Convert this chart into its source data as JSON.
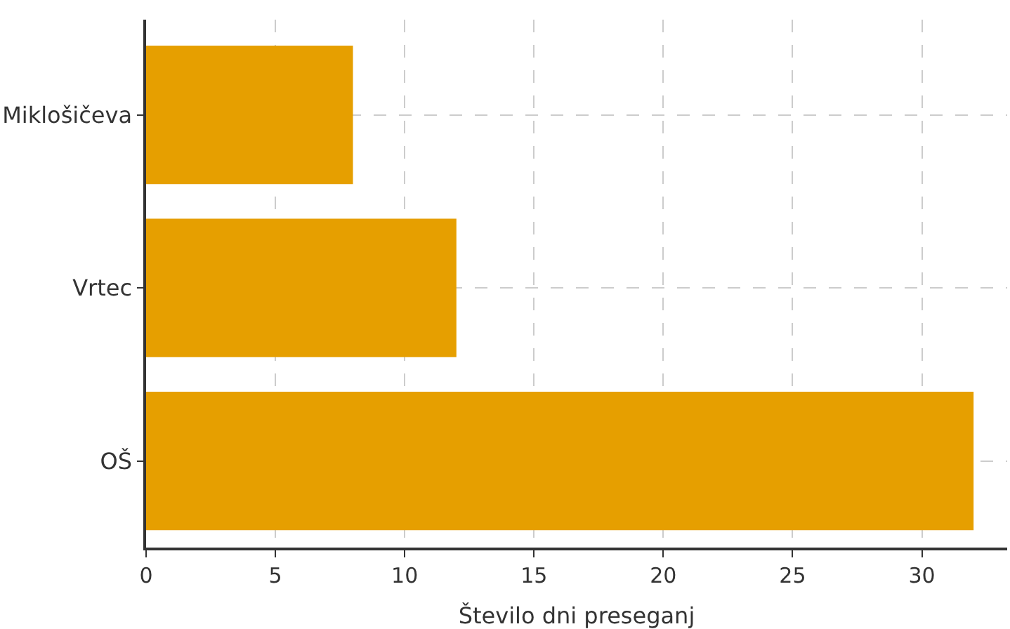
{
  "chart_data": {
    "type": "bar",
    "orientation": "horizontal",
    "xlabel": "Število dni preseganj",
    "categories": [
      "Miklošičeva",
      "Vrtec",
      "OŠ"
    ],
    "values": [
      8,
      12,
      32
    ],
    "color": "#e69f00",
    "xlim": [
      0,
      33.3
    ],
    "xticks": [
      0,
      5,
      10,
      15,
      20,
      25,
      30
    ],
    "grid": true
  }
}
